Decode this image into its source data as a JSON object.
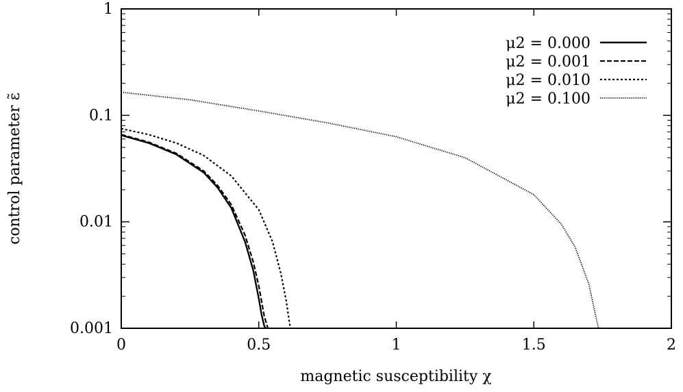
{
  "chart_data": {
    "type": "line",
    "xlabel": "magnetic susceptibility χ",
    "ylabel": "control parameter ε̃",
    "xlim": [
      0,
      2
    ],
    "ylim": [
      0.001,
      1
    ],
    "yscale": "log",
    "grid": false,
    "legend_position": "top-right",
    "x_ticks": [
      {
        "value": 0,
        "label": "0"
      },
      {
        "value": 0.5,
        "label": "0.5"
      },
      {
        "value": 1,
        "label": "1"
      },
      {
        "value": 1.5,
        "label": "1.5"
      },
      {
        "value": 2,
        "label": "2"
      }
    ],
    "y_ticks": [
      {
        "value": 0.001,
        "label": "0.001"
      },
      {
        "value": 0.01,
        "label": "0.01"
      },
      {
        "value": 0.1,
        "label": "0.1"
      },
      {
        "value": 1,
        "label": "1"
      }
    ],
    "series": [
      {
        "name": "μ2 = 0.000",
        "style": "solid",
        "x": [
          0,
          0.1,
          0.2,
          0.3,
          0.35,
          0.4,
          0.45,
          0.48,
          0.5,
          0.51,
          0.52,
          0.525
        ],
        "y": [
          0.065,
          0.055,
          0.043,
          0.029,
          0.021,
          0.0135,
          0.0065,
          0.0035,
          0.0019,
          0.00135,
          0.00105,
          0.001
        ]
      },
      {
        "name": "μ2 = 0.001",
        "style": "dashed",
        "x": [
          0,
          0.1,
          0.2,
          0.3,
          0.35,
          0.4,
          0.45,
          0.48,
          0.5,
          0.51,
          0.52,
          0.533
        ],
        "y": [
          0.066,
          0.056,
          0.044,
          0.03,
          0.022,
          0.0145,
          0.0075,
          0.0042,
          0.0025,
          0.0018,
          0.0013,
          0.001
        ]
      },
      {
        "name": "μ2 = 0.010",
        "style": "short-dashed",
        "x": [
          0,
          0.1,
          0.2,
          0.3,
          0.4,
          0.5,
          0.55,
          0.58,
          0.6,
          0.61,
          0.615
        ],
        "y": [
          0.075,
          0.066,
          0.055,
          0.042,
          0.027,
          0.013,
          0.0065,
          0.0033,
          0.0018,
          0.0012,
          0.001
        ]
      },
      {
        "name": "μ2 = 0.100",
        "style": "dotted",
        "x": [
          0,
          0.25,
          0.5,
          0.75,
          1.0,
          1.25,
          1.5,
          1.6,
          1.65,
          1.7,
          1.72,
          1.735
        ],
        "y": [
          0.165,
          0.14,
          0.11,
          0.085,
          0.063,
          0.04,
          0.018,
          0.0095,
          0.0058,
          0.0026,
          0.0015,
          0.001
        ]
      }
    ]
  }
}
